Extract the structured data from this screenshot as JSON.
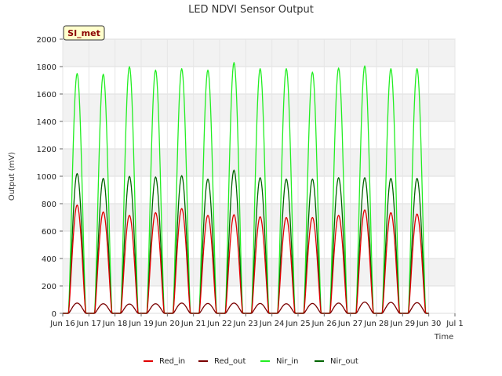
{
  "chart_data": {
    "type": "line",
    "title": "LED NDVI Sensor Output",
    "xlabel": "Time",
    "ylabel": "Output (mV)",
    "badge": "SI_met",
    "ylim": [
      0,
      2000
    ],
    "yticks": [
      0,
      200,
      400,
      600,
      800,
      1000,
      1200,
      1400,
      1600,
      1800,
      2000
    ],
    "xlim": [
      "2024-06-16",
      "2024-07-01"
    ],
    "xticks": [
      "Jun 16",
      "Jun 17",
      "Jun 18",
      "Jun 19",
      "Jun 20",
      "Jun 21",
      "Jun 22",
      "Jun 23",
      "Jun 24",
      "Jun 25",
      "Jun 26",
      "Jun 27",
      "Jun 28",
      "Jun 29",
      "Jun 30",
      "Jul 1"
    ],
    "grid": true,
    "legend_position": "bottom",
    "x_days": [
      "2024-06-16",
      "2024-06-17",
      "2024-06-18",
      "2024-06-19",
      "2024-06-20",
      "2024-06-21",
      "2024-06-22",
      "2024-06-23",
      "2024-06-24",
      "2024-06-25",
      "2024-06-26",
      "2024-06-27",
      "2024-06-28",
      "2024-06-29"
    ],
    "series": [
      {
        "name": "Red_in",
        "color": "#e00000",
        "daily_peak": [
          790,
          740,
          715,
          735,
          765,
          715,
          720,
          705,
          700,
          700,
          715,
          755,
          735,
          725
        ]
      },
      {
        "name": "Red_out",
        "color": "#7a0000",
        "daily_peak": [
          75,
          70,
          68,
          70,
          75,
          72,
          75,
          72,
          70,
          72,
          75,
          82,
          80,
          78
        ]
      },
      {
        "name": "Nir_in",
        "color": "#22ee22",
        "daily_peak": [
          1750,
          1745,
          1800,
          1775,
          1785,
          1775,
          1830,
          1785,
          1785,
          1760,
          1790,
          1805,
          1785,
          1785
        ]
      },
      {
        "name": "Nir_out",
        "color": "#006400",
        "daily_peak": [
          1020,
          985,
          1000,
          995,
          1005,
          980,
          1045,
          990,
          980,
          980,
          990,
          990,
          985,
          985
        ]
      }
    ]
  }
}
